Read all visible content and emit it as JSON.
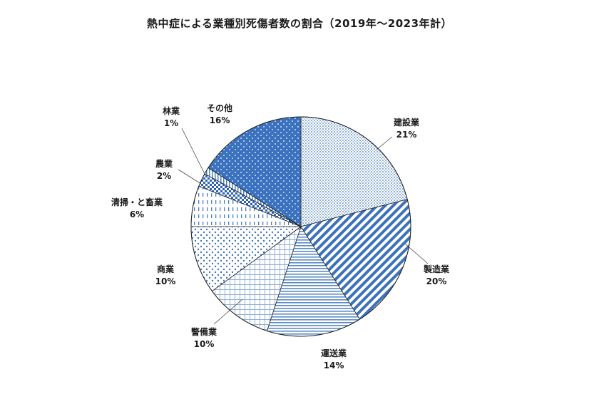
{
  "chart_data": {
    "type": "pie",
    "title": "熱中症による業種別死傷者数の割合（2019年～2023年計）",
    "unit": "%",
    "start": "top",
    "direction": "clockwise",
    "slices": [
      {
        "label": "建設業",
        "value": 21,
        "value_label": "21%",
        "pattern": "fine-dots",
        "color": "#d4e2f2"
      },
      {
        "label": "製造業",
        "value": 20,
        "value_label": "20%",
        "pattern": "diag-stripes",
        "color": "#4a7ebf"
      },
      {
        "label": "運送業",
        "value": 14,
        "value_label": "14%",
        "pattern": "horiz-lines",
        "color": "#4a7ebf"
      },
      {
        "label": "警備業",
        "value": 10,
        "value_label": "10%",
        "pattern": "grid",
        "color": "#4a7ebf"
      },
      {
        "label": "商業",
        "value": 10,
        "value_label": "10%",
        "pattern": "dots",
        "color": "#4a7ebf"
      },
      {
        "label": "清掃・と畜業",
        "value": 6,
        "value_label": "6%",
        "pattern": "vert-dashes",
        "color": "#4a7ebf"
      },
      {
        "label": "農業",
        "value": 2,
        "value_label": "2%",
        "pattern": "checker",
        "color": "#2a63b8"
      },
      {
        "label": "林業",
        "value": 1,
        "value_label": "1%",
        "pattern": "vert-lines",
        "color": "#4a7ebf"
      },
      {
        "label": "その他",
        "value": 16,
        "value_label": "16%",
        "pattern": "solid-dots",
        "color": "#3a72c0"
      }
    ]
  }
}
